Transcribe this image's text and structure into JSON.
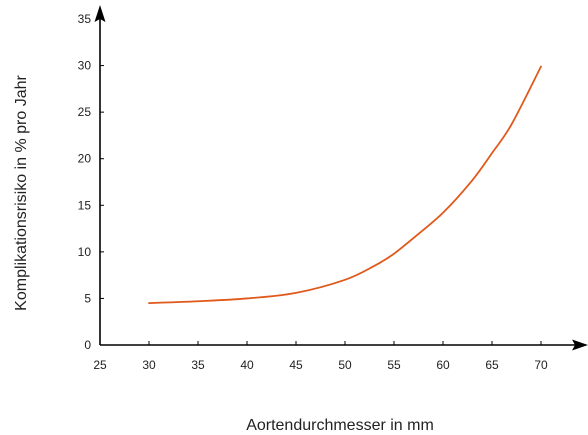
{
  "chart_data": {
    "type": "line",
    "title": "",
    "xlabel": "Aortendurchmesser in mm",
    "ylabel": "Komplikationsrisiko in % pro Jahr",
    "xlim": [
      25,
      70
    ],
    "ylim": [
      0,
      35
    ],
    "xticks": [
      25,
      30,
      35,
      40,
      45,
      50,
      55,
      60,
      65,
      70
    ],
    "yticks": [
      0,
      5,
      10,
      15,
      20,
      25,
      30,
      35
    ],
    "grid": false,
    "legend": "none",
    "series": [
      {
        "color": "#e0581c",
        "x": [
          30,
          35,
          40,
          45,
          50,
          53,
          55,
          57,
          60,
          63,
          65,
          67,
          70
        ],
        "y": [
          4.5,
          4.7,
          5.0,
          5.6,
          7.0,
          8.5,
          9.8,
          11.5,
          14.2,
          17.7,
          20.6,
          23.7,
          29.9
        ]
      }
    ]
  }
}
